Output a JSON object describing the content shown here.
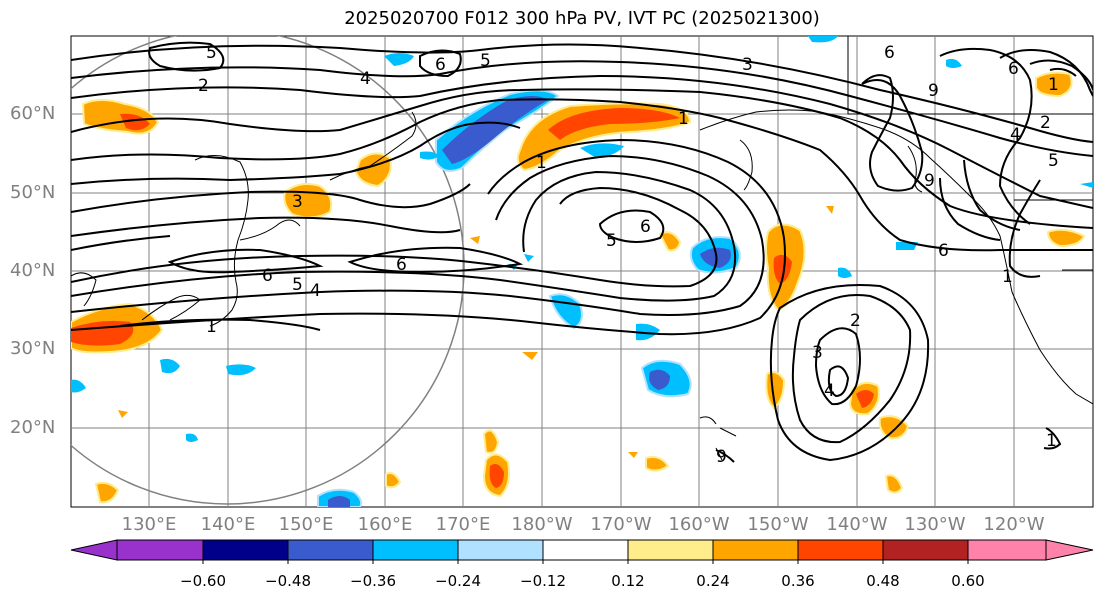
{
  "title": "2025020700 F012 300 hPa PV, IVT PC (2025021300)",
  "latitude_labels": [
    "60°N",
    "50°N",
    "40°N",
    "30°N",
    "20°N"
  ],
  "longitude_labels": [
    "130°E",
    "140°E",
    "150°E",
    "160°E",
    "170°E",
    "180°W",
    "170°W",
    "160°W",
    "150°W",
    "140°W",
    "130°W",
    "120°W"
  ],
  "colorbar": {
    "ticks": [
      "−0.60",
      "−0.48",
      "−0.36",
      "−0.24",
      "−0.12",
      "0.12",
      "0.24",
      "0.36",
      "0.48",
      "0.60"
    ],
    "colors": [
      "#9932cc",
      "#00008b",
      "#3a5bcd",
      "#00bfff",
      "#b0e2ff",
      "#ffffff",
      "#ffec8b",
      "#ffa500",
      "#ff4500",
      "#b22222",
      "#ff82ab"
    ]
  },
  "contour_labels": [
    "5",
    "6",
    "5",
    "2",
    "4",
    "3",
    "3",
    "6",
    "6",
    "6",
    "5",
    "4",
    "1",
    "1",
    "6",
    "5",
    "9",
    "2",
    "3",
    "4",
    "1",
    "1",
    "1",
    "2",
    "4",
    "5",
    "6",
    "9",
    "1",
    "6",
    "9"
  ],
  "colors": {
    "contour": "#000000",
    "grid": "#808080",
    "positive_fill": "#ffa500",
    "positive_core": "#ff4500",
    "negative_fill": "#00bfff",
    "negative_core": "#3a5bcd"
  }
}
